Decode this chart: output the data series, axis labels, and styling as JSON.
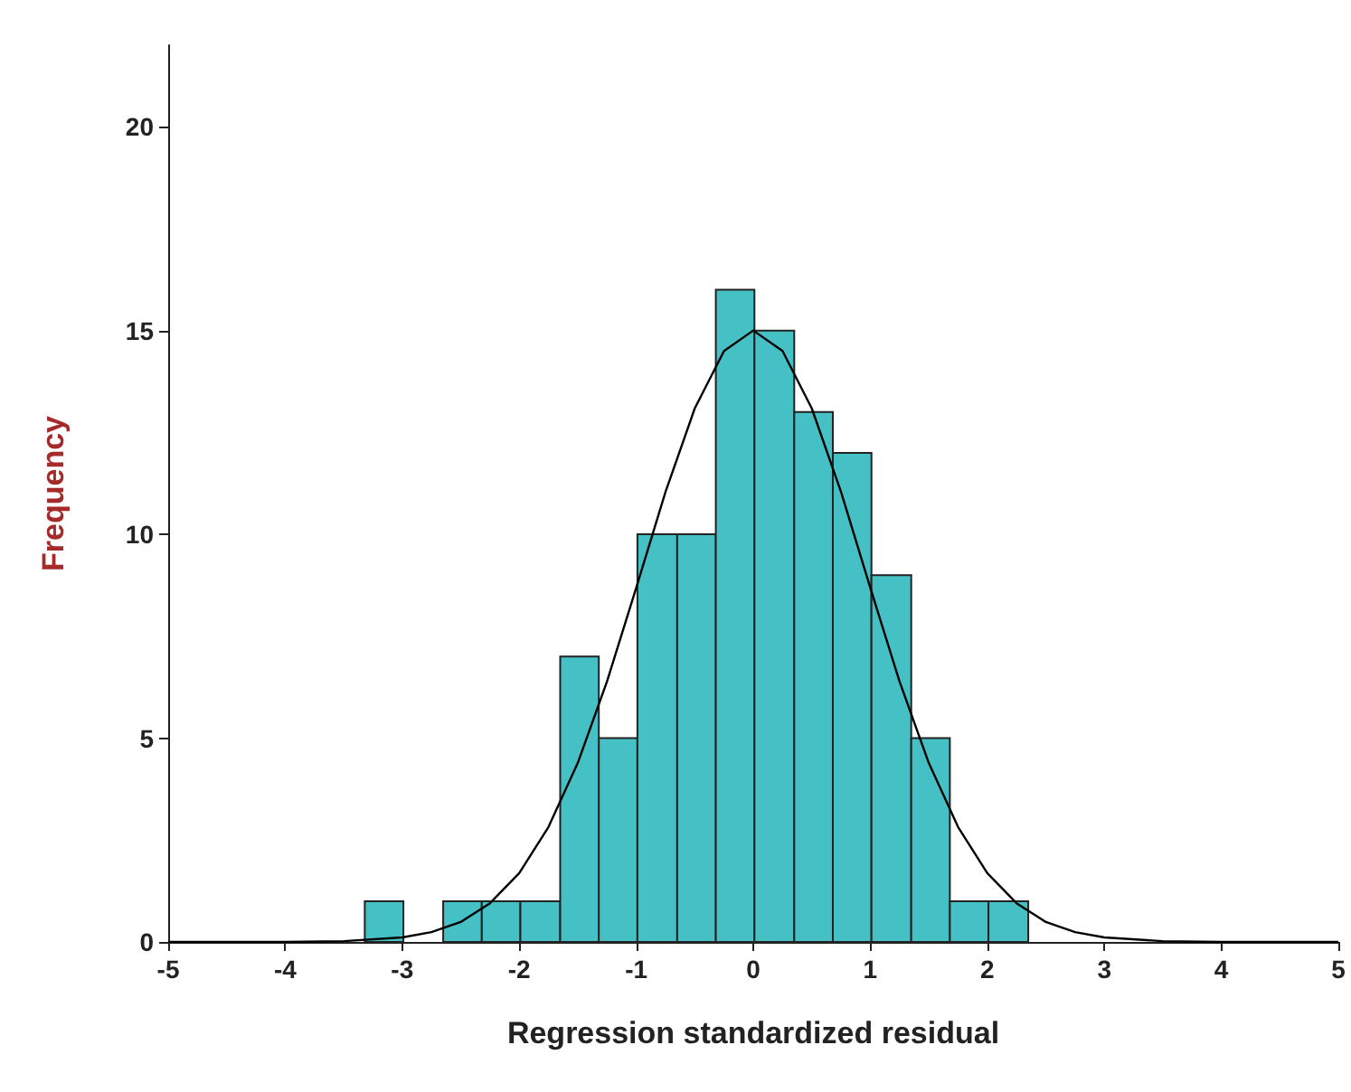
{
  "chart_data": {
    "type": "histogram",
    "xlabel": "Regression standardized residual",
    "ylabel": "Frequency",
    "bins": [
      -3.32,
      -2.99,
      -2.65,
      -2.32,
      -1.99,
      -1.65,
      -1.32,
      -0.99,
      -0.65,
      -0.32,
      0.01,
      0.35,
      0.68,
      1.01,
      1.35,
      1.68,
      2.01,
      2.35
    ],
    "values": [
      1,
      0,
      1,
      1,
      1,
      7,
      5,
      10,
      10,
      16,
      15,
      13,
      12,
      9,
      5,
      1,
      1
    ],
    "color": "#45c1c5",
    "series": [
      {
        "type": "line",
        "color": "#000000",
        "x": [
          -5,
          -4,
          -3.5,
          -3,
          -2.75,
          -2.5,
          -2.25,
          -2,
          -1.75,
          -1.5,
          -1.25,
          -1,
          -0.75,
          -0.5,
          -0.25,
          0,
          0.25,
          0.5,
          0.75,
          1,
          1.25,
          1.5,
          1.75,
          2,
          2.25,
          2.5,
          2.75,
          3,
          3.5,
          4,
          5
        ],
        "values": [
          0,
          0,
          0.02,
          0.11,
          0.24,
          0.49,
          0.95,
          1.69,
          2.82,
          4.39,
          6.39,
          8.69,
          11.04,
          13.09,
          14.5,
          15,
          14.5,
          13.09,
          11.04,
          8.69,
          6.39,
          4.39,
          2.82,
          1.69,
          0.95,
          0.49,
          0.24,
          0.11,
          0.02,
          0,
          0
        ]
      }
    ],
    "xlim": [
      -5,
      5
    ],
    "xticks": [
      -5,
      -4,
      -3,
      -2,
      -1,
      0,
      1,
      2,
      3,
      4,
      5
    ],
    "ylim": [
      0,
      22
    ],
    "yticks": [
      0,
      5,
      10,
      15,
      20
    ],
    "grid": false,
    "marker": "none",
    "line_style": "solid"
  }
}
